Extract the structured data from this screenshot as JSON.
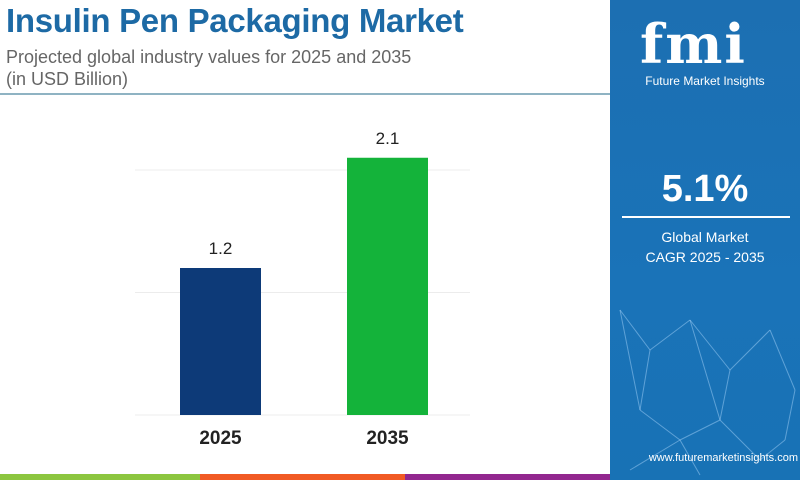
{
  "header": {
    "title": "Insulin Pen Packaging Market",
    "subtitle": "Projected global industry values for 2025 and 2035",
    "unit": "(in USD Billion)"
  },
  "panel": {
    "logo": "fmi",
    "logo_text": "Future Market Insights",
    "cagr": "5.1%",
    "cagr_label_1": "Global Market",
    "cagr_label_2": "CAGR 2025 - 2035",
    "url": "www.futuremarketinsights.com"
  },
  "colors": {
    "bar_2025": "#0d3a78",
    "bar_2035": "#14b33a",
    "panel": "#1a70b4",
    "title": "#1d6aa5",
    "stripes": [
      "#8cc63f",
      "#f15a24",
      "#92278f"
    ]
  },
  "chart_data": {
    "type": "bar",
    "title": "Insulin Pen Packaging Market",
    "categories": [
      "2025",
      "2035"
    ],
    "values": [
      1.2,
      2.1
    ],
    "data_labels": [
      "1.2",
      "2.1"
    ],
    "ylim": [
      0,
      2.1
    ],
    "grid": true,
    "gridlines": [
      0,
      1,
      2
    ],
    "xlabel": "",
    "ylabel": ""
  }
}
